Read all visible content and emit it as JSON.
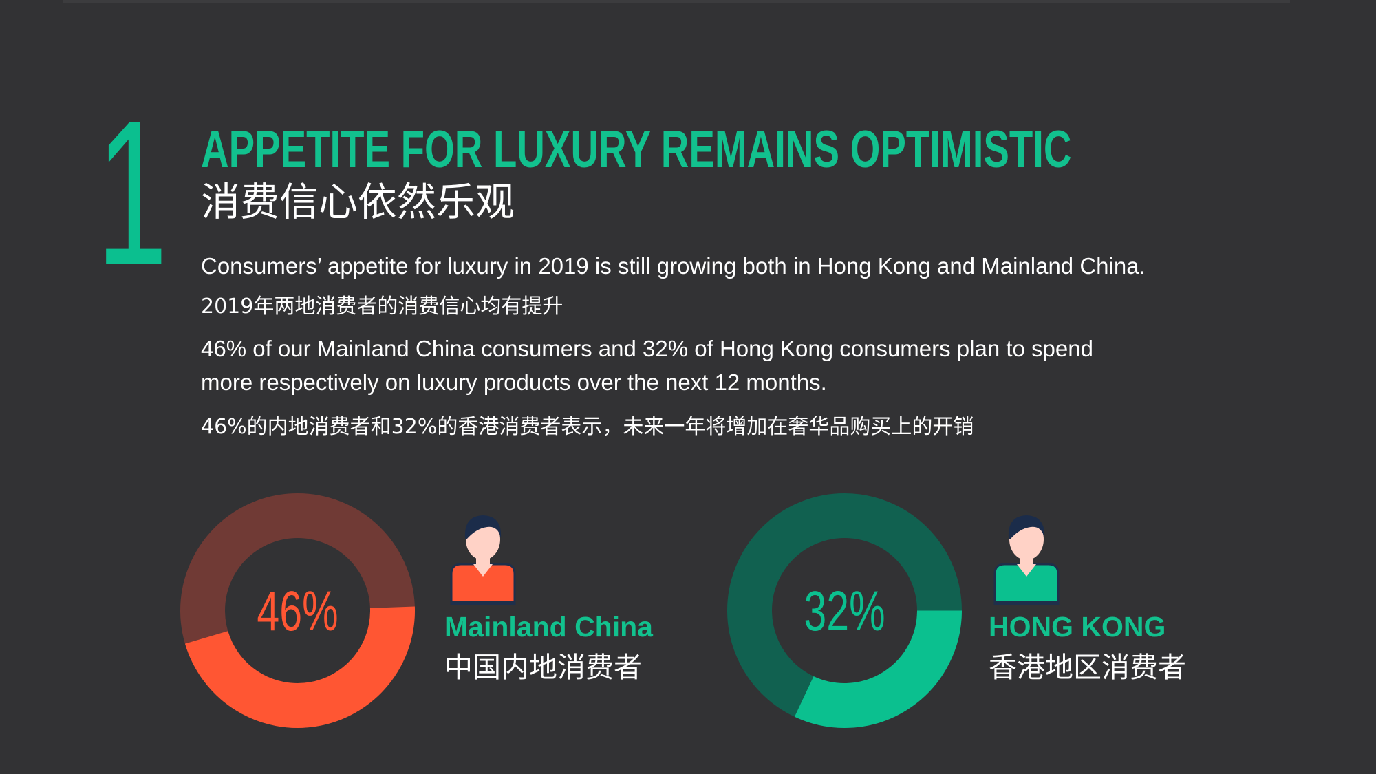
{
  "section": {
    "number": "1",
    "title_en": "APPETITE FOR LUXURY REMAINS OPTIMISTIC",
    "title_cn": "消费信心依然乐观"
  },
  "body": {
    "line1_en": "Consumers’ appetite for luxury in 2019 is still growing both in Hong Kong and Mainland China.",
    "line1_cn": "2019年两地消费者的消费信心均有提升",
    "line2_en_a": "46% of our Mainland China consumers and 32% of Hong Kong consumers plan to spend",
    "line2_en_b": "more respectively on luxury products over the next 12 months.",
    "line2_cn": "46%的内地消费者和32%的香港消费者表示，未来一年将增加在奢华品购买上的开销"
  },
  "colors": {
    "background": "#323234",
    "accent_green": "#12c18e",
    "accent_red": "#ff5633",
    "mc_track": "#703a35",
    "hk_track": "#116150"
  },
  "chart_data": [
    {
      "type": "pie",
      "title": "",
      "categories": [
        "Mainland China"
      ],
      "values": [
        46
      ],
      "label": "46%",
      "region_en": "Mainland China",
      "region_cn": "中国内地消费者",
      "fill_color": "#ff5633",
      "track_color": "#703a35",
      "icon": "person-icon"
    },
    {
      "type": "pie",
      "title": "",
      "categories": [
        "HONG KONG"
      ],
      "values": [
        32
      ],
      "label": "32%",
      "region_en": "HONG KONG",
      "region_cn": "香港地区消费者",
      "fill_color": "#0bc08f",
      "track_color": "#116150",
      "icon": "person-icon"
    }
  ]
}
